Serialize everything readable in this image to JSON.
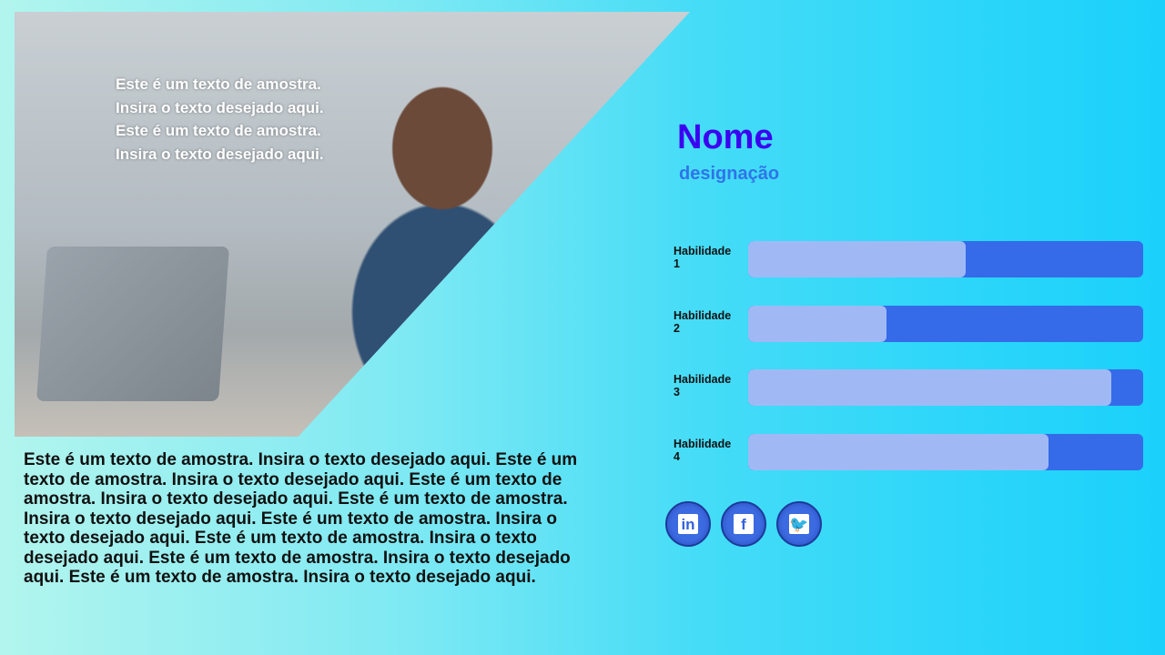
{
  "photo": {
    "overlay_lines": [
      "Este é um texto de amostra.",
      "Insira o texto desejado aqui.",
      "Este é um texto de amostra.",
      "Insira o texto desejado aqui."
    ]
  },
  "body_text": "Este é um texto de amostra. Insira o texto desejado aqui. Este é um texto de amostra. Insira o texto desejado aqui. Este é um texto de amostra. Insira o texto desejado aqui. Este é um texto de amostra. Insira o texto desejado aqui. Este é um texto de amostra. Insira o texto desejado aqui. Este é um texto de amostra. Insira o texto desejado aqui. Este é um texto de amostra. Insira o texto desejado aqui. Este é um texto de amostra. Insira o texto desejado aqui.",
  "profile": {
    "name": "Nome",
    "designation": "designação"
  },
  "skills": [
    {
      "label": "Habilidade 1",
      "level": 0.55
    },
    {
      "label": "Habilidade 2",
      "level": 0.35
    },
    {
      "label": "Habilidade 3",
      "level": 0.92
    },
    {
      "label": "Habilidade 4",
      "level": 0.76
    }
  ],
  "social": [
    {
      "icon": "linkedin-icon",
      "glyph": "in"
    },
    {
      "icon": "facebook-icon",
      "glyph": "f"
    },
    {
      "icon": "twitter-icon",
      "glyph": "🐦"
    }
  ],
  "colors": {
    "name": "#3c00f0",
    "designation": "#2f74e8",
    "bar_track": "#356be8",
    "bar_fill": "#a0b9f5"
  }
}
